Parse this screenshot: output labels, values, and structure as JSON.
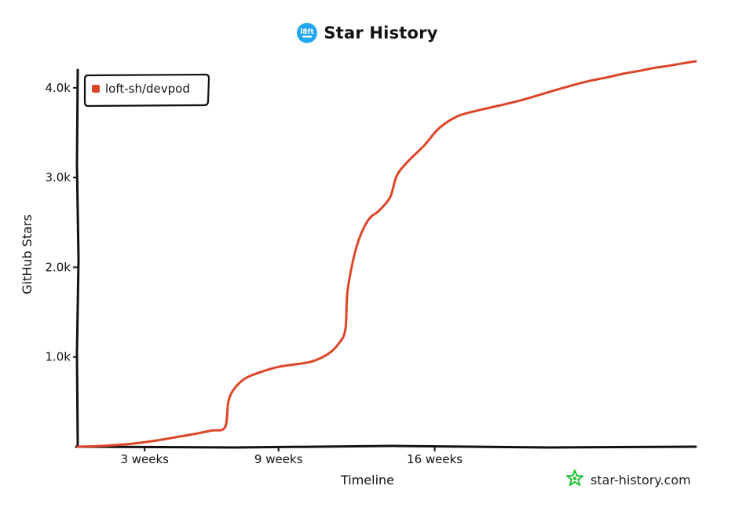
{
  "header": {
    "title": "Star History",
    "logo_icon": "loft-logo-icon",
    "logo_text": "l8ft",
    "logo_color": "#22a6f2"
  },
  "watermark": {
    "text": "star-history.com",
    "icon": "star-history-logo-icon",
    "color": "#1fc431"
  },
  "chart_data": {
    "type": "line",
    "title": "Star History",
    "xlabel": "Timeline",
    "ylabel": "GitHub Stars",
    "x_unit": "weeks",
    "xlim": [
      0,
      27.7
    ],
    "ylim": [
      0,
      4200
    ],
    "x_ticks": [
      {
        "value": 3,
        "label": "3 weeks"
      },
      {
        "value": 9,
        "label": "9 weeks"
      },
      {
        "value": 16,
        "label": "16 weeks"
      }
    ],
    "y_ticks": [
      {
        "value": 1000,
        "label": "1.0k"
      },
      {
        "value": 2000,
        "label": "2.0k"
      },
      {
        "value": 3000,
        "label": "3.0k"
      },
      {
        "value": 4000,
        "label": "4.0k"
      }
    ],
    "grid": false,
    "legend_position": "top-left",
    "series": [
      {
        "name": "loft-sh/devpod",
        "color": "#dd4528",
        "points": [
          [
            0,
            0
          ],
          [
            0.8,
            5
          ],
          [
            1.5,
            15
          ],
          [
            2.3,
            30
          ],
          [
            3.0,
            50
          ],
          [
            3.8,
            80
          ],
          [
            4.5,
            110
          ],
          [
            5.3,
            145
          ],
          [
            6.0,
            180
          ],
          [
            6.6,
            215
          ],
          [
            6.75,
            500
          ],
          [
            7.0,
            640
          ],
          [
            7.5,
            760
          ],
          [
            8.3,
            840
          ],
          [
            9.0,
            890
          ],
          [
            9.8,
            920
          ],
          [
            10.5,
            950
          ],
          [
            11.2,
            1030
          ],
          [
            11.7,
            1150
          ],
          [
            12.0,
            1310
          ],
          [
            12.1,
            1750
          ],
          [
            12.5,
            2230
          ],
          [
            13.0,
            2520
          ],
          [
            13.5,
            2630
          ],
          [
            14.0,
            2780
          ],
          [
            14.3,
            3020
          ],
          [
            14.8,
            3180
          ],
          [
            15.5,
            3350
          ],
          [
            16.2,
            3550
          ],
          [
            17.0,
            3680
          ],
          [
            17.8,
            3740
          ],
          [
            18.5,
            3780
          ],
          [
            19.2,
            3820
          ],
          [
            20.0,
            3870
          ],
          [
            20.8,
            3930
          ],
          [
            21.5,
            3980
          ],
          [
            22.2,
            4030
          ],
          [
            23.0,
            4080
          ],
          [
            23.8,
            4120
          ],
          [
            24.5,
            4160
          ],
          [
            25.2,
            4190
          ],
          [
            25.8,
            4220
          ],
          [
            26.6,
            4250
          ],
          [
            27.3,
            4280
          ],
          [
            27.7,
            4295
          ]
        ]
      }
    ]
  }
}
